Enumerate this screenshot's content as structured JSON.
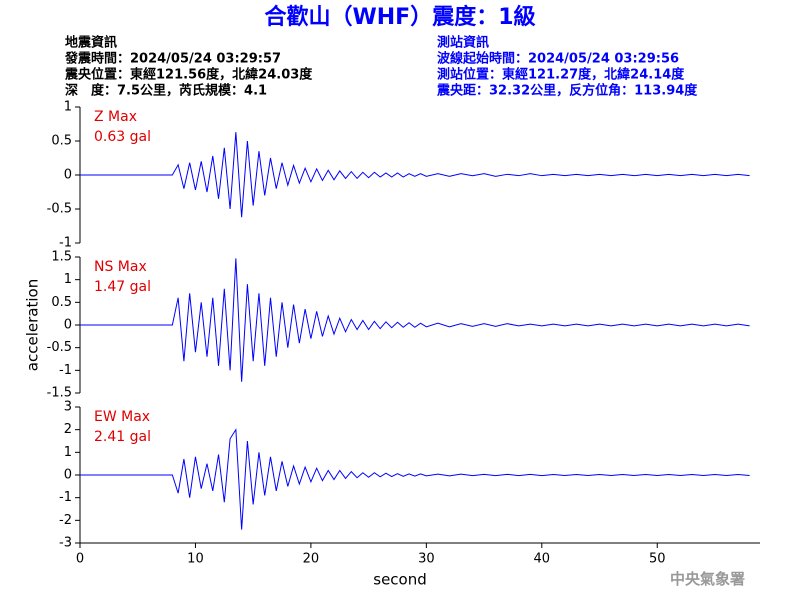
{
  "header": {
    "title": "合歡山（WHF）震度：1級",
    "left": [
      "地震資訊",
      "發震時間：2024/05/24 03:29:57",
      "震央位置：東經121.56度，北緯24.03度",
      "深　度：7.5公里，芮氏規模：4.1"
    ],
    "right": [
      "測站資訊",
      "波線起始時間：2024/05/24 03:29:56",
      "測站位置：東經121.27度，北緯24.14度",
      "震央距：32.32公里，反方位角：113.94度"
    ],
    "credit": "中央氣象署"
  },
  "chart_data": [
    {
      "type": "line",
      "label": "Z Max",
      "max_label": "0.63 gal",
      "color": "#0000ff",
      "x": [
        0,
        8,
        8.5,
        9,
        9.5,
        10,
        10.5,
        11,
        11.5,
        12,
        12.5,
        13,
        13.5,
        14,
        14.5,
        15,
        15.5,
        16,
        16.5,
        17,
        17.5,
        18,
        18.5,
        19,
        19.5,
        20,
        20.5,
        21,
        21.5,
        22,
        22.5,
        23,
        23.5,
        24,
        24.5,
        25,
        25.5,
        26,
        26.5,
        27,
        27.5,
        28,
        28.5,
        29,
        29.5,
        30,
        31,
        32,
        33,
        34,
        35,
        36,
        37,
        38,
        39,
        40,
        41,
        42,
        43,
        44,
        45,
        46,
        47,
        48,
        49,
        50,
        51,
        52,
        53,
        54,
        55,
        56,
        57,
        58
      ],
      "values": [
        0,
        0,
        0.15,
        -0.2,
        0.18,
        -0.22,
        0.2,
        -0.25,
        0.28,
        -0.35,
        0.4,
        -0.5,
        0.63,
        -0.62,
        0.5,
        -0.45,
        0.35,
        -0.3,
        0.25,
        -0.2,
        0.18,
        -0.15,
        0.14,
        -0.12,
        0.1,
        -0.1,
        0.09,
        -0.08,
        0.07,
        -0.07,
        0.06,
        -0.05,
        0.05,
        -0.05,
        0.04,
        -0.04,
        0.04,
        -0.03,
        0.03,
        -0.03,
        0.03,
        -0.03,
        0.02,
        -0.02,
        0.02,
        -0.02,
        0.02,
        -0.02,
        0.02,
        -0.01,
        0.02,
        -0.02,
        0.01,
        -0.01,
        0.02,
        -0.01,
        0.01,
        -0.01,
        0.01,
        -0.01,
        0.01,
        -0.01,
        0.01,
        -0.01,
        0.01,
        -0.01,
        0.01,
        -0.01,
        0.01,
        -0.01,
        0.01,
        -0.01,
        0.01,
        -0.01
      ],
      "xlim": [
        0,
        58.9
      ],
      "ylim": [
        -1,
        1
      ],
      "yticks": [
        1,
        0.5,
        0,
        -0.5,
        -1
      ]
    },
    {
      "type": "line",
      "label": "NS Max",
      "max_label": "1.47 gal",
      "color": "#0000ff",
      "ylabel": "acceleration",
      "x": [
        0,
        8,
        8.5,
        9,
        9.5,
        10,
        10.5,
        11,
        11.5,
        12,
        12.5,
        13,
        13.5,
        14,
        14.5,
        15,
        15.5,
        16,
        16.5,
        17,
        17.5,
        18,
        18.5,
        19,
        19.5,
        20,
        20.5,
        21,
        21.5,
        22,
        22.5,
        23,
        23.5,
        24,
        24.5,
        25,
        25.5,
        26,
        26.5,
        27,
        27.5,
        28,
        28.5,
        29,
        29.5,
        30,
        31,
        32,
        33,
        34,
        35,
        36,
        37,
        38,
        39,
        40,
        41,
        42,
        43,
        44,
        45,
        46,
        47,
        48,
        49,
        50,
        51,
        52,
        53,
        54,
        55,
        56,
        57,
        58
      ],
      "values": [
        0,
        0,
        0.6,
        -0.8,
        0.7,
        -0.6,
        0.5,
        -0.7,
        0.6,
        -0.9,
        0.8,
        -1.0,
        1.47,
        -1.25,
        0.9,
        -0.8,
        0.7,
        -0.9,
        0.6,
        -0.7,
        0.5,
        -0.5,
        0.45,
        -0.4,
        0.35,
        -0.3,
        0.3,
        -0.25,
        0.2,
        -0.2,
        0.15,
        -0.15,
        0.12,
        -0.1,
        0.1,
        -0.1,
        0.08,
        -0.08,
        0.07,
        -0.06,
        0.06,
        -0.05,
        0.05,
        -0.05,
        0.04,
        -0.04,
        0.04,
        -0.04,
        0.03,
        -0.03,
        0.03,
        -0.03,
        0.03,
        -0.02,
        0.02,
        -0.02,
        0.02,
        -0.02,
        0.02,
        -0.02,
        0.02,
        -0.02,
        0.02,
        -0.02,
        0.02,
        -0.02,
        0.02,
        -0.02,
        0.02,
        -0.02,
        0.02,
        -0.02,
        0.02,
        -0.02
      ],
      "xlim": [
        0,
        58.9
      ],
      "ylim": [
        -1.5,
        1.5
      ],
      "yticks": [
        1.5,
        1,
        0.5,
        0,
        -0.5,
        -1,
        -1.5
      ]
    },
    {
      "type": "line",
      "label": "EW Max",
      "max_label": "2.41 gal",
      "color": "#0000ff",
      "xlabel": "second",
      "x": [
        0,
        8,
        8.5,
        9,
        9.5,
        10,
        10.5,
        11,
        11.5,
        12,
        12.5,
        13,
        13.5,
        14,
        14.5,
        15,
        15.5,
        16,
        16.5,
        17,
        17.5,
        18,
        18.5,
        19,
        19.5,
        20,
        20.5,
        21,
        21.5,
        22,
        22.5,
        23,
        23.5,
        24,
        24.5,
        25,
        25.5,
        26,
        26.5,
        27,
        27.5,
        28,
        28.5,
        29,
        29.5,
        30,
        31,
        32,
        33,
        34,
        35,
        36,
        37,
        38,
        39,
        40,
        41,
        42,
        43,
        44,
        45,
        46,
        47,
        48,
        49,
        50,
        51,
        52,
        53,
        54,
        55,
        56,
        57,
        58
      ],
      "values": [
        0,
        0,
        -0.8,
        0.7,
        -1.0,
        0.8,
        -0.6,
        0.5,
        -0.7,
        0.9,
        -1.2,
        1.6,
        2.0,
        -2.41,
        1.5,
        -1.3,
        1.0,
        -0.9,
        0.8,
        -0.7,
        0.6,
        -0.5,
        0.4,
        -0.4,
        0.35,
        -0.3,
        0.3,
        -0.25,
        0.2,
        -0.2,
        0.2,
        -0.15,
        0.15,
        -0.12,
        0.1,
        -0.1,
        0.1,
        -0.08,
        0.08,
        -0.07,
        0.06,
        -0.06,
        0.05,
        -0.05,
        0.05,
        -0.04,
        0.04,
        -0.04,
        0.04,
        -0.03,
        0.03,
        -0.03,
        0.03,
        -0.03,
        0.03,
        -0.03,
        0.02,
        -0.02,
        0.02,
        -0.02,
        0.02,
        -0.02,
        0.02,
        -0.02,
        0.02,
        -0.02,
        0.02,
        -0.02,
        0.02,
        -0.02,
        0.02,
        -0.02,
        0.02,
        -0.02
      ],
      "xlim": [
        0,
        58.9
      ],
      "ylim": [
        -3,
        3
      ],
      "yticks": [
        3,
        2,
        1,
        0,
        -1,
        -2,
        -3
      ],
      "xticks": [
        0,
        10,
        20,
        30,
        40,
        50
      ]
    }
  ]
}
